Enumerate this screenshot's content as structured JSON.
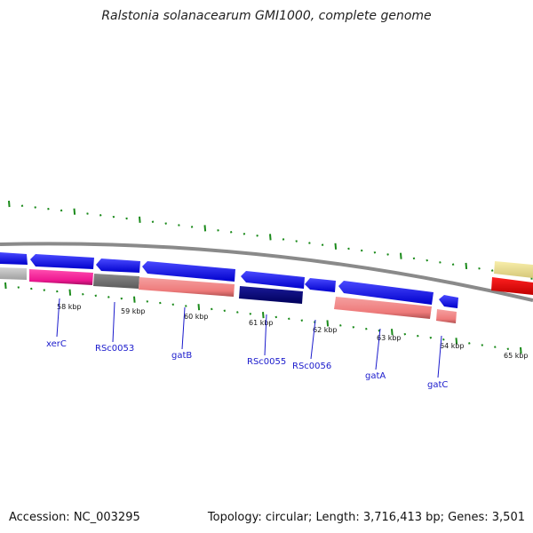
{
  "title": "Ralstonia solanacearum GMI1000, complete genome",
  "footer": {
    "accession": "Accession: NC_003295",
    "summary": "Topology: circular; Length: 3,716,413 bp; Genes: 3,501"
  },
  "colors": {
    "forward_gene": "#0000ee",
    "reverse_gene_light": "#f08080",
    "tick_green": "#1a8a1a",
    "backbone": "#888888",
    "label_blue": "#1a1acc"
  },
  "scale_labels": [
    "58 kbp",
    "59 kbp",
    "60 kbp",
    "61 kbp",
    "62 kbp",
    "63 kbp",
    "64 kbp",
    "65 kbp"
  ],
  "genes": [
    {
      "name": "xerC"
    },
    {
      "name": "RSc0053"
    },
    {
      "name": "gatB"
    },
    {
      "name": "RSc0055"
    },
    {
      "name": "RSc0056"
    },
    {
      "name": "gatA"
    },
    {
      "name": "gatC"
    }
  ]
}
